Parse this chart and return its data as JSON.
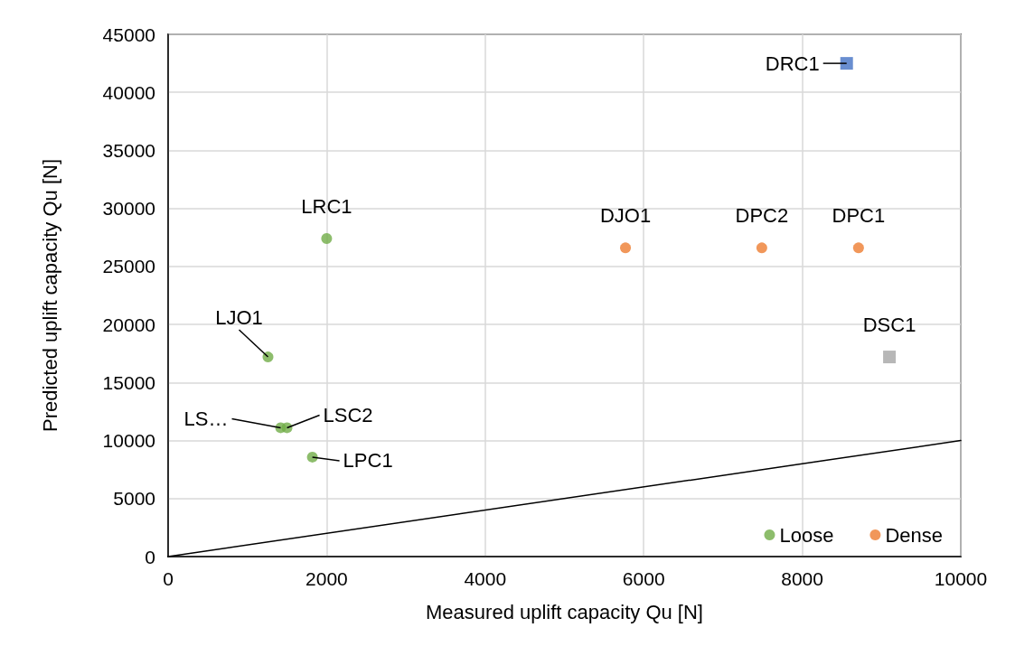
{
  "chart_data": {
    "type": "scatter",
    "xlabel": "Measured uplift capacity Qu [N]",
    "ylabel": "Predicted uplift capacity Qu [N]",
    "xlim": [
      0,
      10000
    ],
    "xticks": [
      0,
      2000,
      4000,
      6000,
      8000,
      10000
    ],
    "ylim": [
      0,
      45000
    ],
    "yticks": [
      0,
      5000,
      10000,
      15000,
      20000,
      25000,
      30000,
      35000,
      40000,
      45000
    ],
    "grid": true,
    "legend": "bottom right",
    "marker": "circle",
    "series": [
      {
        "name": "Loose",
        "color": "#70ad47",
        "x": [
          2000,
          1260,
          1420,
          1500,
          1820
        ],
        "values": [
          27400,
          17200,
          11100,
          11100,
          8570
        ]
      },
      {
        "name": "Dense",
        "color": "#ed7d31",
        "x": [
          5770,
          7490,
          8710
        ],
        "values": [
          26600,
          26600,
          26600
        ]
      },
      {
        "color": "#4472c4",
        "marker": "square",
        "x": [
          8560
        ],
        "values": [
          42500
        ]
      },
      {
        "color": "#a5a5a5",
        "marker": "square",
        "x": [
          9100
        ],
        "values": [
          17200
        ]
      },
      {
        "type": "line",
        "color": "#000000",
        "marker": "none",
        "line_style": "solid",
        "x": [
          0,
          10000
        ],
        "values": [
          0,
          10000
        ]
      }
    ],
    "annotations": [
      {
        "text": "LRC1",
        "x": 2000,
        "y": 27400
      },
      {
        "text": "LJO1",
        "x": 1260,
        "y": 17200
      },
      {
        "text": "LS…",
        "x": 1420,
        "y": 11100
      },
      {
        "text": "LSC2",
        "x": 1500,
        "y": 11100
      },
      {
        "text": "LPC1",
        "x": 1820,
        "y": 8570
      },
      {
        "text": "DJO1",
        "x": 5770,
        "y": 26600
      },
      {
        "text": "DPC2",
        "x": 7490,
        "y": 26600
      },
      {
        "text": "DPC1",
        "x": 8710,
        "y": 26600
      },
      {
        "text": "DRC1",
        "x": 8560,
        "y": 42500
      },
      {
        "text": "DSC1",
        "x": 9100,
        "y": 17200
      }
    ]
  }
}
